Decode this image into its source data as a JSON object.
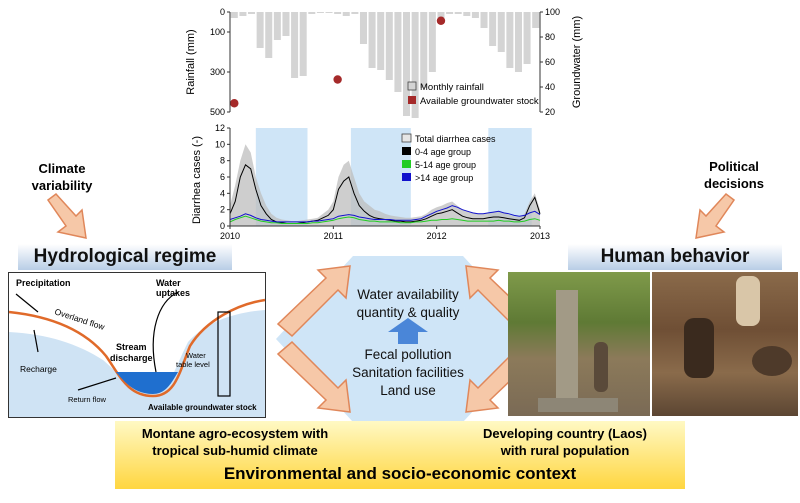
{
  "left": {
    "climate_label_1": "Climate",
    "climate_label_2": "variability",
    "regime_title": "Hydrological regime"
  },
  "right": {
    "political_label_1": "Political",
    "political_label_2": "decisions",
    "behavior_title": "Human behavior"
  },
  "hydro_diagram": {
    "precipitation": "Precipitation",
    "overland_flow": "Overland flow",
    "recharge": "Recharge",
    "stream_discharge_1": "Stream",
    "stream_discharge_2": "discharge",
    "return_flow": "Return flow",
    "water_uptakes_1": "Water",
    "water_uptakes_2": "uptakes",
    "water_table_1": "Water",
    "water_table_2": "table level",
    "groundwater_stock": "Available groundwater stock"
  },
  "center": {
    "water_line1": "Water availability",
    "water_line2": "quantity & quality",
    "fecal": "Fecal pollution",
    "sanitation": "Sanitation facilities",
    "land_use": "Land use"
  },
  "context": {
    "left_line1": "Montane agro-ecosystem with",
    "left_line2": "tropical sub-humid climate",
    "right_line1": "Developing country (Laos)",
    "right_line2": "with rural population",
    "title": "Environmental and socio-economic context"
  },
  "colors": {
    "rain_bar": "#d4d4d4",
    "groundwater_dot": "#a52a2a",
    "total_cases": "#bdbdbd",
    "age_0_4": "#000000",
    "age_5_14": "#22cc22",
    "age_14_plus": "#1111cc",
    "highlight": "#cfe5f7",
    "arrow_fill": "#f6c8a8",
    "arrow_stroke": "#e0875a",
    "water_blue": "#1f6fcf"
  },
  "chart_data": [
    {
      "type": "bar",
      "ylabel": "Rainfall (mm)",
      "y2label": "Groundwater (mm)",
      "y_ticks": [
        "0",
        "100",
        "300",
        "500"
      ],
      "y2_ticks": [
        "100",
        "80",
        "60",
        "40",
        "20"
      ],
      "ylim": [
        0,
        500
      ],
      "y2lim": [
        20,
        100
      ],
      "series": [
        {
          "name": "Monthly rainfall",
          "values": [
            30,
            20,
            10,
            180,
            230,
            140,
            120,
            330,
            320,
            10,
            5,
            5,
            10,
            20,
            10,
            160,
            280,
            290,
            340,
            400,
            520,
            530,
            380,
            300,
            30,
            10,
            10,
            20,
            30,
            80,
            170,
            200,
            280,
            300,
            260,
            80
          ]
        },
        {
          "name": "Available groundwater stock",
          "points": [
            [
              0,
              27
            ],
            [
              12,
              46
            ],
            [
              24,
              93
            ]
          ]
        }
      ],
      "legend": [
        "Monthly rainfall",
        "Available groundwater stock"
      ],
      "legend_position": "bottom-right"
    },
    {
      "type": "area",
      "ylabel": "Diarrhea cases (-)",
      "x_ticks": [
        "2010",
        "2011",
        "2012",
        "2013"
      ],
      "y_ticks": [
        "0",
        "2",
        "4",
        "6",
        "8",
        "10",
        "12"
      ],
      "xlim": [
        2010,
        2013
      ],
      "ylim": [
        0,
        12
      ],
      "highlight_periods": [
        [
          2010.25,
          2010.75
        ],
        [
          2011.17,
          2011.75
        ],
        [
          2012.5,
          2012.92
        ]
      ],
      "x": [
        2010.0,
        2010.05,
        2010.1,
        2010.15,
        2010.2,
        2010.25,
        2010.3,
        2010.35,
        2010.4,
        2010.45,
        2010.5,
        2010.55,
        2010.6,
        2010.65,
        2010.7,
        2010.75,
        2010.8,
        2010.85,
        2010.9,
        2010.95,
        2011.0,
        2011.05,
        2011.1,
        2011.15,
        2011.2,
        2011.25,
        2011.3,
        2011.35,
        2011.4,
        2011.45,
        2011.5,
        2011.55,
        2011.6,
        2011.65,
        2011.7,
        2011.75,
        2011.8,
        2011.85,
        2011.9,
        2011.95,
        2012.0,
        2012.05,
        2012.1,
        2012.15,
        2012.2,
        2012.25,
        2012.3,
        2012.35,
        2012.4,
        2012.45,
        2012.5,
        2012.55,
        2012.6,
        2012.65,
        2012.7,
        2012.75,
        2012.8,
        2012.85,
        2012.9,
        2012.95,
        2013.0
      ],
      "series": [
        {
          "name": "Total diarrhea cases",
          "values": [
            2.5,
            5,
            8,
            10,
            9,
            6,
            4,
            2.5,
            1.5,
            1,
            0.8,
            0.7,
            0.6,
            0.6,
            0.7,
            0.8,
            0.9,
            1,
            1.5,
            2,
            3,
            6,
            7.5,
            8,
            6,
            4,
            3,
            2.5,
            2,
            1.8,
            1.5,
            1.3,
            1.2,
            1.1,
            1,
            1,
            1.1,
            1.2,
            1.5,
            2,
            2.3,
            2.5,
            2.8,
            3,
            2.5,
            2,
            1.8,
            1.6,
            1.5,
            1.5,
            1.6,
            1.7,
            1.8,
            1.6,
            1.4,
            1.2,
            1.1,
            1.5,
            3,
            4,
            2
          ]
        },
        {
          "name": "0-4 age group",
          "values": [
            1.5,
            3,
            6,
            7.5,
            7,
            4.5,
            2.5,
            1.5,
            0.8,
            0.5,
            0.4,
            0.3,
            0.3,
            0.3,
            0.4,
            0.5,
            0.6,
            0.7,
            1,
            1.3,
            2,
            4.5,
            5.5,
            6,
            4,
            2.5,
            1.8,
            1.3,
            1,
            0.9,
            0.8,
            0.7,
            0.6,
            0.6,
            0.5,
            0.5,
            0.6,
            0.7,
            0.9,
            1.2,
            1.5,
            1.6,
            1.8,
            2,
            1.6,
            1.2,
            1,
            0.9,
            0.9,
            0.9,
            1,
            1.1,
            1.1,
            1,
            0.9,
            0.8,
            0.7,
            1,
            2.5,
            3.5,
            1.5
          ]
        },
        {
          "name": "5-14 age group",
          "values": [
            0.5,
            0.8,
            1,
            1.2,
            1,
            0.8,
            0.6,
            0.5,
            0.4,
            0.4,
            0.3,
            0.3,
            0.3,
            0.3,
            0.3,
            0.3,
            0.4,
            0.4,
            0.5,
            0.6,
            0.7,
            0.9,
            1,
            1.1,
            1,
            0.8,
            0.7,
            0.6,
            0.6,
            0.5,
            0.5,
            0.5,
            0.5,
            0.4,
            0.4,
            0.4,
            0.5,
            0.5,
            0.6,
            0.7,
            0.7,
            0.8,
            0.8,
            0.9,
            0.8,
            0.7,
            0.6,
            0.6,
            0.6,
            0.6,
            0.6,
            0.6,
            0.7,
            0.6,
            0.6,
            0.5,
            0.5,
            0.6,
            0.8,
            0.9,
            0.7
          ]
        },
        {
          "name": ">14 age group",
          "values": [
            0.8,
            1,
            1.2,
            1.5,
            1.3,
            1,
            0.8,
            0.7,
            0.6,
            0.5,
            0.5,
            0.5,
            0.5,
            0.5,
            0.5,
            0.5,
            0.6,
            0.6,
            0.7,
            0.8,
            0.9,
            1.2,
            1.3,
            1.4,
            1.3,
            1.1,
            1,
            0.9,
            0.8,
            0.8,
            0.8,
            0.8,
            0.7,
            0.7,
            0.7,
            0.7,
            0.8,
            0.9,
            1.2,
            1.5,
            1.8,
            2,
            2.2,
            2.5,
            2.3,
            2,
            1.8,
            1.6,
            1.5,
            1.5,
            1.6,
            1.7,
            1.8,
            1.6,
            1.5,
            1.3,
            1.2,
            1.3,
            1.6,
            1.8,
            1.4
          ]
        }
      ],
      "legend": [
        "Total diarrhea cases",
        "0-4 age group",
        "5-14 age group",
        ">14 age group"
      ],
      "legend_position": "top-right"
    }
  ]
}
